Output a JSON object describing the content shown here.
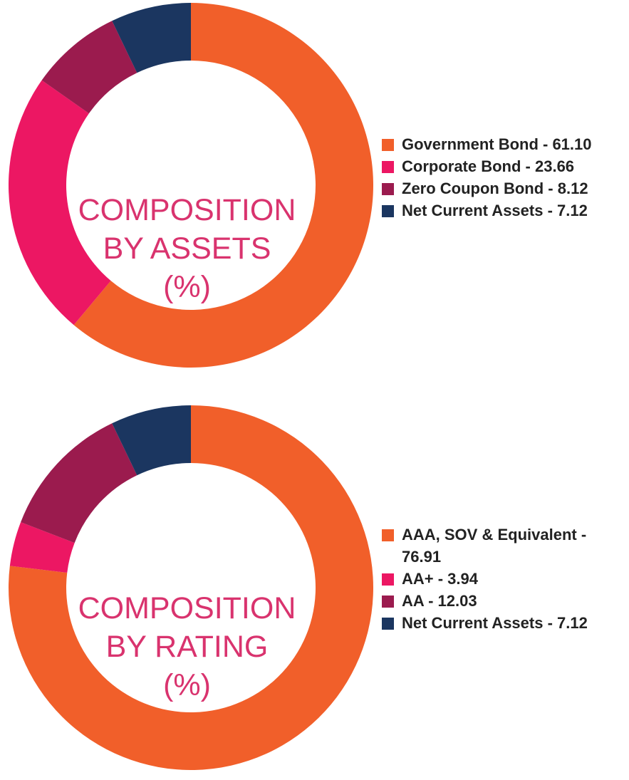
{
  "chart_data": [
    {
      "type": "pie",
      "variant": "donut",
      "title_lines": [
        "COMPOSITION",
        "BY ASSETS",
        "(%)"
      ],
      "series": [
        {
          "name": "Government Bond",
          "value": 61.1,
          "label": "Government Bond - 61.10",
          "color": "#f15f2a"
        },
        {
          "name": "Corporate Bond",
          "value": 23.66,
          "label": "Corporate Bond - 23.66",
          "color": "#ec1763"
        },
        {
          "name": "Zero Coupon Bond",
          "value": 8.12,
          "label": "Zero Coupon Bond - 8.12",
          "color": "#9b1b4e"
        },
        {
          "name": "Net Current Assets",
          "value": 7.12,
          "label": "Net Current Assets - 7.12",
          "color": "#1b3660"
        }
      ],
      "legend_position": "right"
    },
    {
      "type": "pie",
      "variant": "donut",
      "title_lines": [
        "COMPOSITION",
        "BY RATING",
        "(%)"
      ],
      "series": [
        {
          "name": "AAA, SOV & Equivalent",
          "value": 76.91,
          "label": "AAA, SOV & Equivalent - 76.91",
          "color": "#f15f2a"
        },
        {
          "name": "AA+",
          "value": 3.94,
          "label": "AA+ - 3.94",
          "color": "#ec1763"
        },
        {
          "name": "AA",
          "value": 12.03,
          "label": "AA - 12.03",
          "color": "#9b1b4e"
        },
        {
          "name": "Net Current Assets",
          "value": 7.12,
          "label": "Net Current Assets - 7.12",
          "color": "#1b3660"
        }
      ],
      "legend_position": "right"
    }
  ]
}
